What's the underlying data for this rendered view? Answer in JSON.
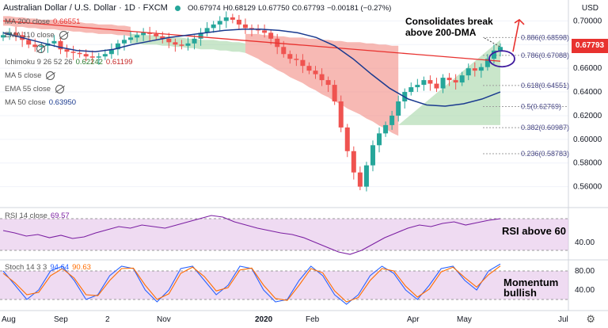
{
  "header": {
    "symbol": "Australian Dollar / U.S. Dollar · 1D · FXCM",
    "open": "O0.67974",
    "high": "H0.68129",
    "low": "L0.67750",
    "close": "C0.67793",
    "change": "−0.00181 (−0.27%)"
  },
  "indicators": [
    {
      "label": "MA 200 close",
      "value": "0.66551",
      "color": "#e8322f"
    },
    {
      "label": "EMA 110 close",
      "value": "",
      "color": "#555555"
    },
    {
      "label": "",
      "value": "",
      "color": "#555555"
    },
    {
      "label": "Ichimoku 9 26 52 26",
      "value": "0.62242",
      "value2": "0.61199",
      "color": "#2e7d32",
      "color2": "#c62828"
    },
    {
      "label": "MA 5 close",
      "value": "",
      "color": "#555555"
    },
    {
      "label": "EMA 55 close",
      "value": "",
      "color": "#555555"
    },
    {
      "label": "MA 50 close",
      "value": "0.63950",
      "color": "#1a3a8f"
    }
  ],
  "annotations": {
    "main": "Consolidates break\nabove 200-DMA",
    "rsi": "RSI above 60",
    "stoch": "Momentum\nbullish"
  },
  "rsi_label": {
    "label": "RSI 14 close",
    "value": "69.57"
  },
  "stoch_label": {
    "label": "Stoch 14 3 3",
    "value_k": "94.64",
    "value_d": "90.63",
    "color_k": "#2962ff",
    "color_d": "#ff6d00"
  },
  "axis": {
    "currency": "USD",
    "last_price": "0.67793"
  },
  "colors": {
    "up": "#26a69a",
    "down": "#ef5350",
    "ma200": "#e8322f",
    "ma50": "#1a3a8f",
    "cloud_bear": "#f28b82",
    "cloud_bull": "#a5d6a7",
    "rsi": "#7b1fa2",
    "band": "#e1bee7"
  },
  "chart_data": [
    {
      "type": "candlestick",
      "title": "Australian Dollar / U.S. Dollar · 1D · FXCM",
      "x_labels": [
        "Aug",
        "Sep",
        "2",
        "Nov",
        "2020",
        "Feb",
        "Apr",
        "May",
        "Jul"
      ],
      "ylim": [
        0.545,
        0.715
      ],
      "y_ticks": [
        0.56,
        0.58,
        0.6,
        0.62,
        0.64,
        0.66,
        0.68,
        0.7
      ],
      "y_tick_labels": [
        "0.56000",
        "0.58000",
        "0.60000",
        "0.62000",
        "0.64000",
        "0.66000",
        "0.68000",
        "0.70000"
      ],
      "close_path": [
        0.688,
        0.69,
        0.688,
        0.684,
        0.68,
        0.678,
        0.679,
        0.681,
        0.683,
        0.676,
        0.674,
        0.673,
        0.672,
        0.67,
        0.669,
        0.67,
        0.672,
        0.676,
        0.681,
        0.684,
        0.686,
        0.688,
        0.69,
        0.689,
        0.687,
        0.685,
        0.682,
        0.68,
        0.679,
        0.681,
        0.685,
        0.69,
        0.694,
        0.697,
        0.7,
        0.703,
        0.701,
        0.697,
        0.694,
        0.693,
        0.692,
        0.69,
        0.685,
        0.678,
        0.672,
        0.668,
        0.667,
        0.662,
        0.658,
        0.655,
        0.65,
        0.646,
        0.632,
        0.61,
        0.59,
        0.572,
        0.56,
        0.578,
        0.595,
        0.605,
        0.612,
        0.62,
        0.632,
        0.64,
        0.644,
        0.646,
        0.65,
        0.647,
        0.643,
        0.652,
        0.65,
        0.648,
        0.654,
        0.66,
        0.658,
        0.661,
        0.668,
        0.675,
        0.678
      ],
      "ma200": [
        0.7,
        0.699,
        0.698,
        0.697,
        0.696,
        0.695,
        0.694,
        0.693,
        0.692,
        0.691,
        0.69,
        0.689,
        0.688,
        0.687,
        0.686,
        0.685,
        0.684,
        0.683,
        0.682,
        0.681,
        0.68,
        0.679,
        0.678,
        0.677,
        0.676,
        0.675,
        0.674,
        0.673,
        0.672,
        0.671,
        0.67,
        0.669,
        0.668,
        0.667,
        0.666
      ],
      "ma50": [
        0.69,
        0.686,
        0.682,
        0.678,
        0.675,
        0.674,
        0.676,
        0.68,
        0.683,
        0.686,
        0.688,
        0.69,
        0.692,
        0.693,
        0.693,
        0.692,
        0.69,
        0.686,
        0.679,
        0.668,
        0.655,
        0.643,
        0.634,
        0.629,
        0.628,
        0.63,
        0.634,
        0.64
      ],
      "fibonacci": [
        {
          "level": "0.886",
          "price": 0.68598,
          "label": "0.886(0.68598)"
        },
        {
          "level": "0.786",
          "price": 0.67088,
          "label": "0.786(0.67088)"
        },
        {
          "level": "0.618",
          "price": 0.64551,
          "label": "0.618(0.64551)"
        },
        {
          "level": "0.5",
          "price": 0.62769,
          "label": "0.5(0.62769)"
        },
        {
          "level": "0.382",
          "price": 0.60987,
          "label": "0.382(0.60987)"
        },
        {
          "level": "0.236",
          "price": 0.58783,
          "label": "0.236(0.58783)"
        }
      ]
    },
    {
      "type": "line",
      "title": "RSI 14 close",
      "ylim": [
        20,
        80
      ],
      "y_tick_labels": [
        "40.00"
      ],
      "y_ticks": [
        40
      ],
      "band": [
        30,
        70
      ],
      "values": [
        55,
        52,
        48,
        50,
        46,
        49,
        45,
        47,
        52,
        56,
        60,
        58,
        62,
        60,
        58,
        62,
        66,
        70,
        74,
        72,
        66,
        62,
        58,
        55,
        52,
        50,
        46,
        40,
        34,
        28,
        25,
        30,
        38,
        46,
        52,
        58,
        62,
        60,
        64,
        66,
        62,
        65,
        68,
        70
      ]
    },
    {
      "type": "line",
      "title": "Stoch 14 3 3",
      "ylim": [
        0,
        100
      ],
      "y_tick_labels": [
        "80.00",
        "40.00"
      ],
      "y_ticks": [
        80,
        40
      ],
      "band": [
        20,
        80
      ],
      "series": [
        {
          "name": "94.64",
          "values": [
            80,
            50,
            20,
            40,
            80,
            90,
            60,
            20,
            30,
            70,
            90,
            85,
            40,
            15,
            40,
            85,
            90,
            60,
            30,
            50,
            90,
            85,
            40,
            15,
            20,
            60,
            90,
            70,
            30,
            10,
            30,
            70,
            90,
            75,
            40,
            20,
            50,
            85,
            90,
            60,
            40,
            80,
            94.6
          ]
        },
        {
          "name": "90.63",
          "values": [
            75,
            55,
            30,
            35,
            70,
            85,
            65,
            30,
            28,
            60,
            85,
            86,
            50,
            20,
            32,
            75,
            88,
            68,
            38,
            45,
            82,
            86,
            50,
            22,
            18,
            50,
            85,
            76,
            38,
            15,
            24,
            60,
            85,
            80,
            48,
            25,
            42,
            78,
            88,
            66,
            46,
            72,
            90.6
          ]
        }
      ]
    }
  ]
}
